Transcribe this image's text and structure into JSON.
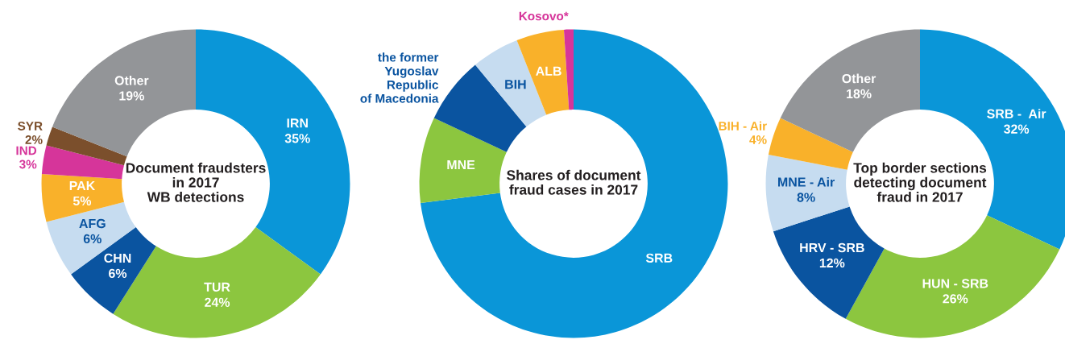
{
  "chart_data": [
    {
      "type": "donut",
      "title": "Document fraudsters\nin 2017\nWB detections",
      "categories": [
        "IRN",
        "TUR",
        "CHN",
        "AFG",
        "PAK",
        "IND",
        "SYR",
        "Other"
      ],
      "values": [
        35,
        24,
        6,
        6,
        5,
        3,
        2,
        19
      ],
      "value_labels": [
        "35%",
        "24%",
        "6%",
        "6%",
        "5%",
        "3%",
        "2%",
        "19%"
      ],
      "colors": [
        "#0a96d8",
        "#8cc63f",
        "#0a54a0",
        "#c6dcf0",
        "#f9b12a",
        "#d6359a",
        "#7b4f2c",
        "#939598"
      ]
    },
    {
      "type": "donut",
      "title": "Shares of document\nfraud cases in 2017",
      "categories": [
        "SRB",
        "MNE",
        "the former\nYugoslav\nRepublic\nof Macedonia",
        "BIH",
        "ALB",
        "Kosovo*"
      ],
      "values": [
        73,
        9,
        7,
        5,
        5,
        1
      ],
      "colors": [
        "#0a96d8",
        "#8cc63f",
        "#0a54a0",
        "#c6dcf0",
        "#f9b12a",
        "#d6359a"
      ]
    },
    {
      "type": "donut",
      "title": "Top border sections\ndetecting document\nfraud in 2017",
      "categories": [
        "SRB -  Air",
        "HUN - SRB",
        "HRV - SRB",
        "MNE - Air",
        "BIH - Air",
        "Other"
      ],
      "values": [
        32,
        26,
        12,
        8,
        4,
        18
      ],
      "value_labels": [
        "32%",
        "26%",
        "12%",
        "8%",
        "4%",
        "18%"
      ],
      "colors": [
        "#0a96d8",
        "#8cc63f",
        "#0a54a0",
        "#c6dcf0",
        "#f9b12a",
        "#939598"
      ]
    }
  ]
}
